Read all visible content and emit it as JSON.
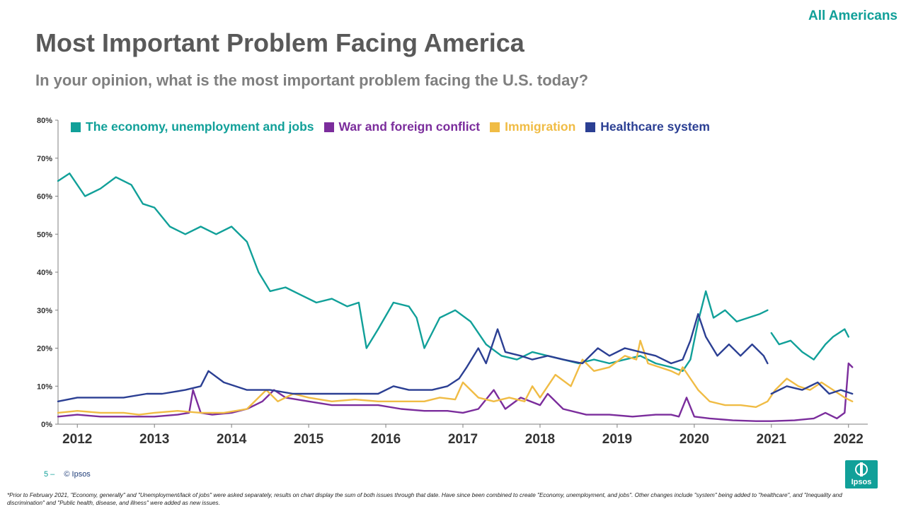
{
  "page": {
    "corner_tag": "All Americans",
    "title": "Most Important Problem Facing America",
    "subtitle": "In your opinion, what is the most important problem facing the U.S. today?",
    "page_number": "5 –",
    "copyright": "© Ipsos",
    "logo_text": "Ipsos",
    "footnote": "*Prior to February 2021, \"Economy, generally\" and \"Unemployment/lack of jobs\" were asked separately, results on chart display the sum of both issues through that date. Have since been combined to create \"Economy, unemployment, and jobs\". Other changes include \"system\" being added to \"healthcare\", and \"Inequality and discrimination\" and \"Public health, disease, and illness\" were added as new issues."
  },
  "colors": {
    "teal": "#11a099",
    "purple": "#7b2d9c",
    "gold": "#f0bc45",
    "navy": "#2b3f93",
    "grid": "#d9d9d9"
  },
  "chart_data": {
    "type": "line",
    "title": "Most Important Problem Facing America",
    "x_ticks": [
      "2012",
      "2013",
      "2014",
      "2015",
      "2016",
      "2017",
      "2018",
      "2019",
      "2020",
      "2021",
      "2022"
    ],
    "y_ticks": [
      "0%",
      "10%",
      "20%",
      "30%",
      "40%",
      "50%",
      "60%",
      "70%",
      "80%"
    ],
    "ylim": [
      0,
      80
    ],
    "xlim": [
      2011.75,
      2022.25
    ],
    "legend_position": "top",
    "series": [
      {
        "name": "The economy, unemployment and jobs",
        "color": "#11a099",
        "x": [
          2011.75,
          2011.9,
          2012.1,
          2012.3,
          2012.5,
          2012.7,
          2012.85,
          2013.0,
          2013.2,
          2013.4,
          2013.6,
          2013.8,
          2014.0,
          2014.2,
          2014.35,
          2014.5,
          2014.7,
          2014.9,
          2015.1,
          2015.3,
          2015.5,
          2015.65,
          2015.75,
          2015.9,
          2016.1,
          2016.3,
          2016.4,
          2016.5,
          2016.7,
          2016.9,
          2017.1,
          2017.3,
          2017.5,
          2017.7,
          2017.9,
          2018.1,
          2018.3,
          2018.5,
          2018.7,
          2018.9,
          2019.1,
          2019.3,
          2019.5,
          2019.7,
          2019.85,
          2019.95,
          2020.05,
          2020.15,
          2020.25,
          2020.4,
          2020.55,
          2020.7,
          2020.85,
          2020.95
        ],
        "y": [
          64,
          66,
          60,
          62,
          65,
          63,
          58,
          57,
          52,
          50,
          52,
          50,
          52,
          48,
          40,
          35,
          36,
          34,
          32,
          33,
          31,
          32,
          20,
          25,
          32,
          31,
          28,
          20,
          28,
          30,
          27,
          21,
          18,
          17,
          19,
          18,
          17,
          16,
          17,
          16,
          17,
          18,
          16,
          15,
          14,
          17,
          27,
          35,
          28,
          30,
          27,
          28,
          29,
          30
        ]
      },
      {
        "name": "The economy, unemployment and jobs",
        "color": "#11a099",
        "x": [
          2021.0,
          2021.1,
          2021.25,
          2021.4,
          2021.55,
          2021.7,
          2021.8,
          2021.95,
          2022.0
        ],
        "y": [
          24,
          21,
          22,
          19,
          17,
          21,
          23,
          25,
          23
        ]
      },
      {
        "name": "War and foreign conflict",
        "color": "#7b2d9c",
        "x": [
          2011.75,
          2012.0,
          2012.3,
          2012.6,
          2012.8,
          2013.0,
          2013.3,
          2013.45,
          2013.5,
          2013.6,
          2013.75,
          2014.0,
          2014.2,
          2014.4,
          2014.55,
          2014.7,
          2015.0,
          2015.3,
          2015.6,
          2015.9,
          2016.2,
          2016.5,
          2016.8,
          2017.0,
          2017.2,
          2017.4,
          2017.55,
          2017.75,
          2018.0,
          2018.1,
          2018.3,
          2018.6,
          2018.9,
          2019.2,
          2019.5,
          2019.7,
          2019.8,
          2019.9,
          2020.0,
          2020.2,
          2020.5,
          2020.8,
          2021.0,
          2021.3,
          2021.55,
          2021.7,
          2021.85,
          2021.95,
          2022.0,
          2022.05
        ],
        "y": [
          2,
          2.5,
          2,
          2,
          2,
          2,
          2.5,
          3,
          9,
          3,
          2.5,
          3,
          4,
          6,
          9,
          7,
          6,
          5,
          5,
          5,
          4,
          3.5,
          3.5,
          3,
          4,
          9,
          4,
          7,
          5,
          8,
          4,
          2.5,
          2.5,
          2,
          2.5,
          2.5,
          2,
          7,
          2,
          1.5,
          1,
          0.8,
          0.8,
          1,
          1.5,
          3,
          1.5,
          3,
          16,
          15
        ]
      },
      {
        "name": "Immigration",
        "color": "#f0bc45",
        "x": [
          2011.75,
          2012.0,
          2012.3,
          2012.6,
          2012.8,
          2013.0,
          2013.3,
          2013.6,
          2013.9,
          2014.2,
          2014.35,
          2014.45,
          2014.6,
          2014.8,
          2015.0,
          2015.3,
          2015.6,
          2015.9,
          2016.2,
          2016.5,
          2016.7,
          2016.9,
          2017.0,
          2017.2,
          2017.4,
          2017.6,
          2017.8,
          2017.9,
          2018.0,
          2018.2,
          2018.4,
          2018.55,
          2018.7,
          2018.9,
          2019.1,
          2019.25,
          2019.3,
          2019.4,
          2019.55,
          2019.7,
          2019.8,
          2019.85,
          2019.95,
          2020.05,
          2020.2,
          2020.4,
          2020.6,
          2020.8,
          2020.95,
          2021.05,
          2021.2,
          2021.35,
          2021.5,
          2021.65,
          2021.8,
          2021.95,
          2022.05
        ],
        "y": [
          3,
          3.5,
          3,
          3,
          2.5,
          3,
          3.5,
          3,
          3,
          4,
          7,
          9,
          6,
          8,
          7,
          6,
          6.5,
          6,
          6,
          6,
          7,
          6.5,
          11,
          7,
          6,
          7,
          6,
          10,
          7,
          13,
          10,
          17,
          14,
          15,
          18,
          17,
          22,
          16,
          15,
          14,
          13,
          15,
          12,
          9,
          6,
          5,
          5,
          4.5,
          6,
          9,
          12,
          10,
          9,
          11,
          9,
          7,
          6
        ]
      },
      {
        "name": "Healthcare system",
        "color": "#2b3f93",
        "x": [
          2011.75,
          2012.0,
          2012.3,
          2012.6,
          2012.9,
          2013.1,
          2013.4,
          2013.6,
          2013.7,
          2013.9,
          2014.2,
          2014.5,
          2014.8,
          2015.1,
          2015.4,
          2015.7,
          2015.9,
          2016.1,
          2016.3,
          2016.6,
          2016.8,
          2016.95,
          2017.05,
          2017.2,
          2017.3,
          2017.45,
          2017.55,
          2017.75,
          2017.9,
          2018.1,
          2018.3,
          2018.55,
          2018.75,
          2018.9,
          2019.1,
          2019.3,
          2019.5,
          2019.7,
          2019.85,
          2019.95,
          2020.05,
          2020.15,
          2020.3,
          2020.45,
          2020.6,
          2020.75,
          2020.9,
          2020.95
        ],
        "y": [
          6,
          7,
          7,
          7,
          8,
          8,
          9,
          10,
          14,
          11,
          9,
          9,
          8,
          8,
          8,
          8,
          8,
          10,
          9,
          9,
          10,
          12,
          15,
          20,
          16,
          25,
          19,
          18,
          17,
          18,
          17,
          16,
          20,
          18,
          20,
          19,
          18,
          16,
          17,
          22,
          29,
          23,
          18,
          21,
          18,
          21,
          18,
          16
        ]
      },
      {
        "name": "Healthcare system",
        "color": "#2b3f93",
        "x": [
          2021.0,
          2021.2,
          2021.4,
          2021.6,
          2021.75,
          2021.9,
          2022.05
        ],
        "y": [
          8,
          10,
          9,
          11,
          8,
          9,
          8
        ]
      }
    ],
    "legend": [
      {
        "label": "The economy, unemployment and jobs",
        "color": "#11a099"
      },
      {
        "label": "War and foreign conflict",
        "color": "#7b2d9c"
      },
      {
        "label": "Immigration",
        "color": "#f0bc45"
      },
      {
        "label": "Healthcare system",
        "color": "#2b3f93"
      }
    ]
  }
}
